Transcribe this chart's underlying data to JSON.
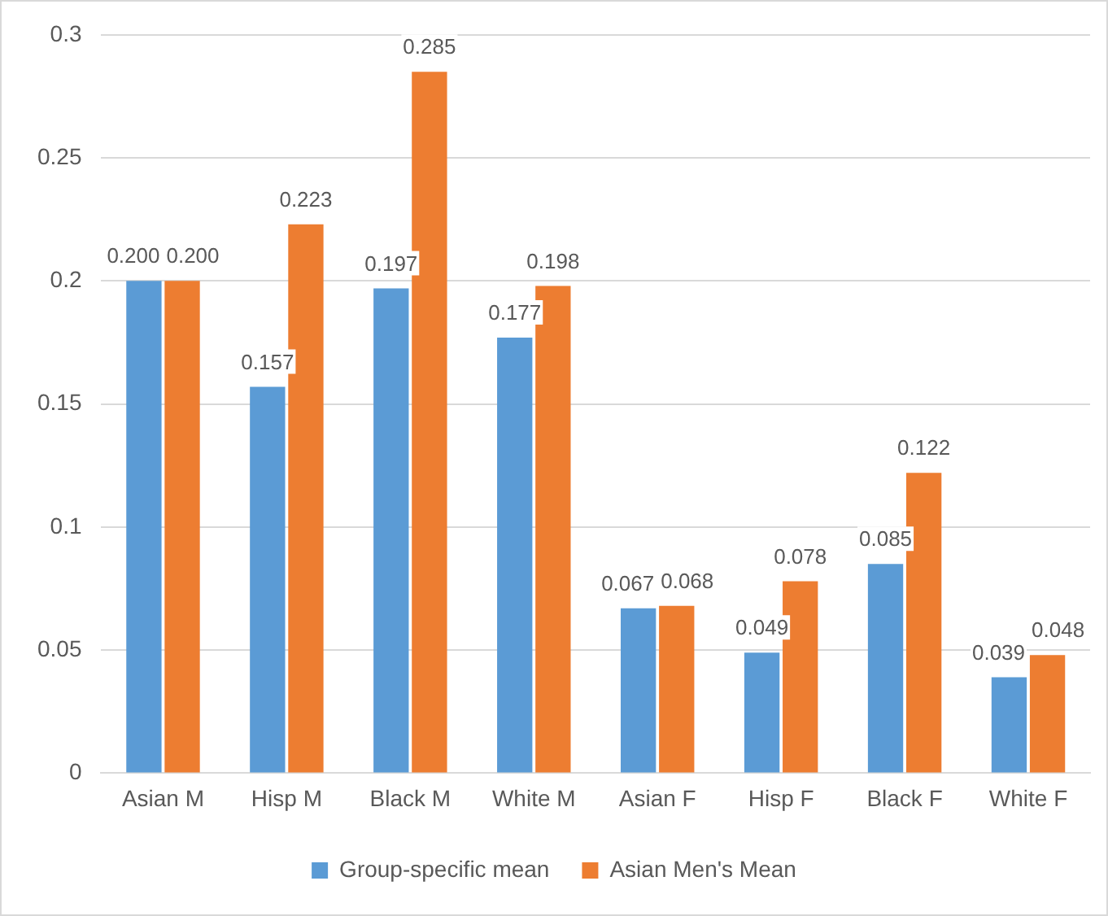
{
  "chart_data": {
    "type": "bar",
    "categories": [
      "Asian M",
      "Hisp M",
      "Black M",
      "White M",
      "Asian F",
      "Hisp F",
      "Black F",
      "White F"
    ],
    "series": [
      {
        "name": "Group-specific mean",
        "color": "#5b9bd5",
        "values": [
          0.2,
          0.157,
          0.197,
          0.177,
          0.067,
          0.049,
          0.085,
          0.039
        ],
        "value_labels": [
          "0.200",
          "0.157",
          "0.197",
          "0.177",
          "0.067",
          "0.049",
          "0.085",
          "0.039"
        ]
      },
      {
        "name": "Asian Men's Mean",
        "color": "#ed7d31",
        "values": [
          0.2,
          0.223,
          0.285,
          0.198,
          0.068,
          0.078,
          0.122,
          0.048
        ],
        "value_labels": [
          "0.200",
          "0.223",
          "0.285",
          "0.198",
          "0.068",
          "0.078",
          "0.122",
          "0.048"
        ]
      }
    ],
    "ylim": [
      0,
      0.3
    ],
    "yticks": [
      0,
      0.05,
      0.1,
      0.15,
      0.2,
      0.25,
      0.3
    ],
    "grid": "y",
    "legend": "bottom"
  }
}
